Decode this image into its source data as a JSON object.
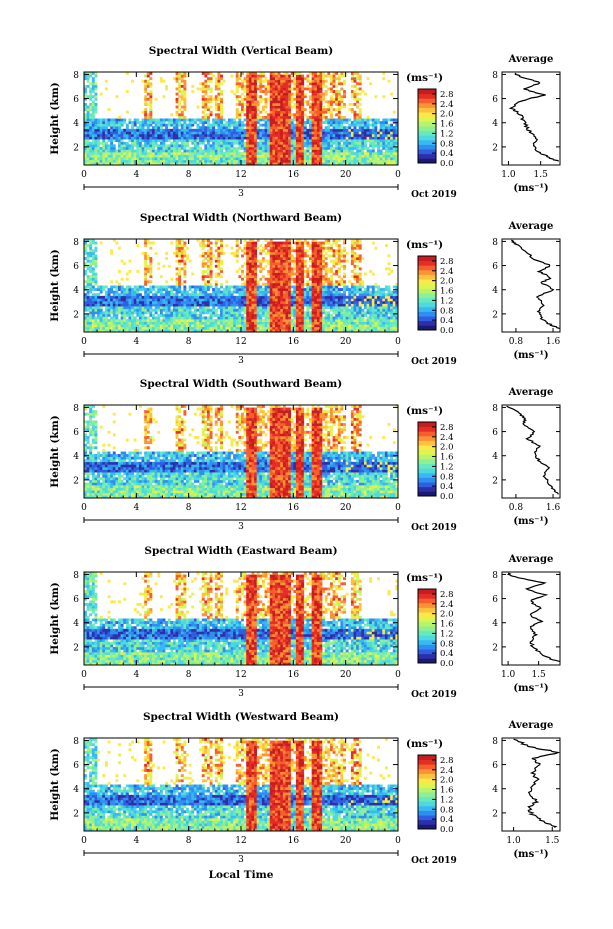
{
  "figure": {
    "xlabel": "Local Time",
    "date_label": "Oct 2019",
    "day_label": "3",
    "unit_label": "(ms⁻¹)",
    "colormap": [
      "#1a1a6e",
      "#2d2fa8",
      "#2f5fe0",
      "#2f8ff0",
      "#37b9f2",
      "#4fd8df",
      "#67e9c0",
      "#8ef094",
      "#b9f26b",
      "#def44f",
      "#fbe94a",
      "#fcc23f",
      "#f99336",
      "#f45f2d",
      "#e42d25",
      "#c81d20"
    ]
  },
  "chart_data": [
    {
      "type": "heatmap",
      "title": "Spectral Width (Vertical Beam)",
      "ylabel": "Height (km)",
      "x_ticks": [
        "0",
        "4",
        "8",
        "12",
        "16",
        "20",
        "0"
      ],
      "y_ticks": [
        "2",
        "4",
        "6",
        "8"
      ],
      "xlim": [
        0,
        24
      ],
      "ylim": [
        0.5,
        8.2
      ],
      "colorbar": {
        "ticks": [
          "0.0",
          "0.4",
          "0.8",
          "1.2",
          "1.6",
          "2.0",
          "2.4",
          "2.8"
        ],
        "range": [
          0.0,
          3.0
        ]
      },
      "average": {
        "title": "Average",
        "xlabel": "(ms⁻¹)",
        "x_ticks": [
          "1.0",
          "1.5"
        ],
        "xlim": [
          0.9,
          1.8
        ],
        "profile": [
          [
            1.78,
            0.8
          ],
          [
            1.6,
            1.2
          ],
          [
            1.45,
            1.6
          ],
          [
            1.38,
            2.2
          ],
          [
            1.45,
            2.8
          ],
          [
            1.3,
            3.4
          ],
          [
            1.25,
            4.0
          ],
          [
            1.2,
            4.6
          ],
          [
            1.05,
            5.2
          ],
          [
            1.2,
            5.8
          ],
          [
            1.55,
            6.3
          ],
          [
            1.25,
            6.8
          ],
          [
            1.5,
            7.3
          ],
          [
            1.2,
            7.8
          ],
          [
            1.1,
            8.1
          ]
        ]
      }
    },
    {
      "type": "heatmap",
      "title": "Spectral Width (Northward Beam)",
      "ylabel": "Height (km)",
      "x_ticks": [
        "0",
        "4",
        "8",
        "12",
        "16",
        "20",
        "0"
      ],
      "y_ticks": [
        "2",
        "4",
        "6",
        "8"
      ],
      "xlim": [
        0,
        24
      ],
      "ylim": [
        0.5,
        8.2
      ],
      "colorbar": {
        "ticks": [
          "0.0",
          "0.4",
          "0.8",
          "1.2",
          "1.6",
          "2.0",
          "2.4",
          "2.8"
        ],
        "range": [
          0.0,
          3.0
        ]
      },
      "average": {
        "title": "Average",
        "xlabel": "(ms⁻¹)",
        "x_ticks": [
          "0.8",
          "1.6"
        ],
        "xlim": [
          0.5,
          1.75
        ],
        "profile": [
          [
            1.72,
            0.8
          ],
          [
            1.5,
            1.2
          ],
          [
            1.35,
            1.6
          ],
          [
            1.3,
            2.2
          ],
          [
            1.4,
            2.8
          ],
          [
            1.25,
            3.4
          ],
          [
            1.6,
            4.0
          ],
          [
            1.35,
            4.6
          ],
          [
            1.55,
            5.0
          ],
          [
            1.3,
            5.5
          ],
          [
            1.55,
            6.0
          ],
          [
            1.2,
            6.5
          ],
          [
            1.0,
            7.2
          ],
          [
            0.8,
            7.8
          ],
          [
            0.7,
            8.1
          ]
        ]
      }
    },
    {
      "type": "heatmap",
      "title": "Spectral Width (Southward Beam)",
      "ylabel": "Height (km)",
      "x_ticks": [
        "0",
        "4",
        "8",
        "12",
        "16",
        "20",
        "0"
      ],
      "y_ticks": [
        "2",
        "4",
        "6",
        "8"
      ],
      "xlim": [
        0,
        24
      ],
      "ylim": [
        0.5,
        8.2
      ],
      "colorbar": {
        "ticks": [
          "0.0",
          "0.4",
          "0.8",
          "1.2",
          "1.6",
          "2.0",
          "2.4",
          "2.8"
        ],
        "range": [
          0.0,
          3.0
        ]
      },
      "average": {
        "title": "Average",
        "xlabel": "(ms⁻¹)",
        "x_ticks": [
          "0.8",
          "1.6"
        ],
        "xlim": [
          0.5,
          1.75
        ],
        "profile": [
          [
            1.72,
            0.8
          ],
          [
            1.6,
            1.2
          ],
          [
            1.5,
            1.8
          ],
          [
            1.4,
            2.4
          ],
          [
            1.5,
            3.0
          ],
          [
            1.3,
            3.6
          ],
          [
            1.2,
            4.2
          ],
          [
            1.3,
            4.8
          ],
          [
            1.05,
            5.4
          ],
          [
            1.2,
            6.0
          ],
          [
            0.95,
            6.6
          ],
          [
            1.0,
            7.1
          ],
          [
            0.85,
            7.6
          ],
          [
            0.6,
            8.1
          ]
        ]
      }
    },
    {
      "type": "heatmap",
      "title": "Spectral Width (Eastward Beam)",
      "ylabel": "Height (km)",
      "x_ticks": [
        "0",
        "4",
        "8",
        "12",
        "16",
        "20",
        "0"
      ],
      "y_ticks": [
        "2",
        "4",
        "6",
        "8"
      ],
      "xlim": [
        0,
        24
      ],
      "ylim": [
        0.5,
        8.2
      ],
      "colorbar": {
        "ticks": [
          "0.0",
          "0.4",
          "0.8",
          "1.2",
          "1.6",
          "2.0",
          "2.4",
          "2.8"
        ],
        "range": [
          0.0,
          3.0
        ]
      },
      "average": {
        "title": "Average",
        "xlabel": "(ms⁻¹)",
        "x_ticks": [
          "1.0",
          "1.5"
        ],
        "xlim": [
          0.9,
          1.85
        ],
        "profile": [
          [
            1.82,
            0.8
          ],
          [
            1.6,
            1.2
          ],
          [
            1.45,
            1.8
          ],
          [
            1.35,
            2.4
          ],
          [
            1.45,
            3.0
          ],
          [
            1.35,
            3.6
          ],
          [
            1.55,
            4.1
          ],
          [
            1.35,
            4.6
          ],
          [
            1.55,
            5.2
          ],
          [
            1.35,
            5.8
          ],
          [
            1.6,
            6.3
          ],
          [
            1.3,
            6.8
          ],
          [
            1.6,
            7.3
          ],
          [
            1.1,
            7.8
          ],
          [
            1.0,
            8.1
          ]
        ]
      }
    },
    {
      "type": "heatmap",
      "title": "Spectral Width (Westward Beam)",
      "ylabel": "Height (km)",
      "x_ticks": [
        "0",
        "4",
        "8",
        "12",
        "16",
        "20",
        "0"
      ],
      "y_ticks": [
        "2",
        "4",
        "6",
        "8"
      ],
      "xlim": [
        0,
        24
      ],
      "ylim": [
        0.5,
        8.2
      ],
      "colorbar": {
        "ticks": [
          "0.0",
          "0.4",
          "0.8",
          "1.2",
          "1.6",
          "2.0",
          "2.4",
          "2.8"
        ],
        "range": [
          0.0,
          3.0
        ]
      },
      "average": {
        "title": "Average",
        "xlabel": "(ms⁻¹)",
        "x_ticks": [
          "1.0",
          "1.5"
        ],
        "xlim": [
          0.85,
          1.6
        ],
        "profile": [
          [
            1.55,
            0.8
          ],
          [
            1.4,
            1.2
          ],
          [
            1.25,
            1.8
          ],
          [
            1.2,
            2.4
          ],
          [
            1.3,
            3.0
          ],
          [
            1.2,
            3.6
          ],
          [
            1.25,
            4.2
          ],
          [
            1.3,
            4.8
          ],
          [
            1.25,
            5.4
          ],
          [
            1.35,
            6.0
          ],
          [
            1.25,
            6.5
          ],
          [
            1.58,
            7.0
          ],
          [
            1.2,
            7.5
          ],
          [
            1.0,
            8.1
          ]
        ]
      }
    }
  ]
}
